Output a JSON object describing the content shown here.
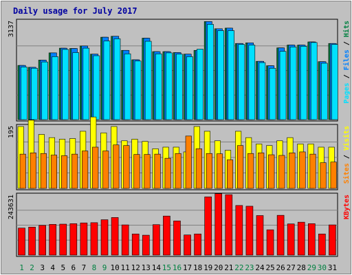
{
  "chart_data": [
    {
      "type": "bar",
      "title": "Daily usage for July 2017",
      "categories": [
        "1",
        "2",
        "3",
        "4",
        "5",
        "6",
        "7",
        "8",
        "9",
        "10",
        "11",
        "12",
        "13",
        "14",
        "15",
        "16",
        "17",
        "18",
        "19",
        "20",
        "21",
        "22",
        "23",
        "24",
        "25",
        "26",
        "27",
        "28",
        "29",
        "30",
        "31"
      ],
      "weekend_days": [
        "1",
        "2",
        "8",
        "9",
        "15",
        "16",
        "22",
        "23",
        "29",
        "30"
      ],
      "ymax_label": "3137",
      "right_label": {
        "parts": [
          "Pages",
          " / ",
          "Files",
          " / ",
          "Hits"
        ],
        "colors": [
          "#00e0ff",
          "#000000",
          "#0080ff",
          "#000000",
          "#008040"
        ]
      },
      "series": [
        {
          "name": "Hits",
          "color": "#008040",
          "values": [
            1730,
            1670,
            1900,
            2130,
            2280,
            2270,
            2350,
            2090,
            2630,
            2660,
            2210,
            1910,
            2600,
            2170,
            2170,
            2140,
            2090,
            2210,
            3130,
            2900,
            2920,
            2430,
            2450,
            1860,
            1720,
            2290,
            2380,
            2380,
            2480,
            1850,
            2430
          ]
        },
        {
          "name": "Files",
          "color": "#0080ff",
          "values": [
            1730,
            1670,
            1900,
            2130,
            2280,
            2270,
            2350,
            2090,
            2630,
            2660,
            2210,
            1910,
            2600,
            2170,
            2170,
            2140,
            2090,
            2210,
            3130,
            2900,
            2920,
            2430,
            2450,
            1860,
            1720,
            2290,
            2380,
            2380,
            2480,
            1850,
            2430
          ]
        },
        {
          "name": "Pages",
          "color": "#00e0ff",
          "values": [
            1680,
            1640,
            1840,
            2010,
            2240,
            2140,
            2280,
            2040,
            2510,
            2580,
            2100,
            1870,
            2500,
            2100,
            2130,
            2090,
            2010,
            2250,
            3040,
            2840,
            2840,
            2400,
            2380,
            1820,
            1640,
            2180,
            2320,
            2340,
            2460,
            1800,
            2400
          ]
        }
      ]
    },
    {
      "type": "bar",
      "ymax_label": "195",
      "right_label": {
        "parts": [
          "Sites",
          " / ",
          "Visits"
        ],
        "colors": [
          "#ff8000",
          "#000000",
          "#ffff00"
        ]
      },
      "series": [
        {
          "name": "Visits",
          "color": "#ffff00",
          "values": [
            195,
            215,
            170,
            160,
            155,
            157,
            180,
            225,
            175,
            195,
            150,
            155,
            148,
            125,
            130,
            130,
            115,
            195,
            180,
            150,
            120,
            180,
            160,
            140,
            135,
            150,
            160,
            140,
            140,
            130,
            130
          ]
        },
        {
          "name": "Sites",
          "color": "#ff8000",
          "values": [
            108,
            112,
            110,
            105,
            103,
            108,
            118,
            130,
            118,
            137,
            135,
            107,
            107,
            108,
            95,
            110,
            165,
            125,
            110,
            109,
            90,
            135,
            110,
            112,
            106,
            104,
            112,
            115,
            108,
            81,
            83
          ]
        }
      ]
    },
    {
      "type": "bar",
      "ymax_label": "243631",
      "right_label": {
        "parts": [
          "KBytes"
        ],
        "colors": [
          "#ff0000"
        ]
      },
      "series": [
        {
          "name": "KBytes",
          "color": "#ff0000",
          "values": [
            110000,
            114000,
            121000,
            125000,
            126000,
            128000,
            131000,
            132000,
            144000,
            153000,
            123000,
            86000,
            81000,
            124000,
            159000,
            139000,
            82000,
            86000,
            237000,
            250000,
            246000,
            202000,
            199000,
            161000,
            103000,
            162000,
            127000,
            134000,
            128000,
            86000,
            123000
          ]
        }
      ]
    }
  ]
}
